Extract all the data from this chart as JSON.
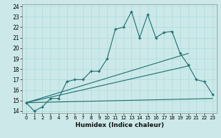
{
  "xlabel": "Humidex (Indice chaleur)",
  "ylabel": "",
  "bg_color": "#cce8e8",
  "line_color": "#1a6b6b",
  "xlim": [
    -0.5,
    23.5
  ],
  "ylim": [
    13.8,
    24.2
  ],
  "xticks": [
    0,
    1,
    2,
    3,
    4,
    5,
    6,
    7,
    8,
    9,
    10,
    11,
    12,
    13,
    14,
    15,
    16,
    17,
    18,
    19,
    20,
    21,
    22,
    23
  ],
  "yticks": [
    14,
    15,
    16,
    17,
    18,
    19,
    20,
    21,
    22,
    23,
    24
  ],
  "main_x": [
    0,
    1,
    2,
    3,
    4,
    5,
    6,
    7,
    8,
    9,
    10,
    11,
    12,
    13,
    14,
    15,
    16,
    17,
    18,
    19,
    20,
    21,
    22,
    23
  ],
  "main_y": [
    14.8,
    14.0,
    14.4,
    15.2,
    15.2,
    16.8,
    17.0,
    17.0,
    17.8,
    17.8,
    19.0,
    21.8,
    22.0,
    23.5,
    21.0,
    23.2,
    21.0,
    21.5,
    21.6,
    19.5,
    18.4,
    17.0,
    16.8,
    15.6
  ],
  "line1_x": [
    0,
    20
  ],
  "line1_y": [
    14.8,
    19.5
  ],
  "line2_x": [
    0,
    20
  ],
  "line2_y": [
    14.8,
    18.3
  ],
  "line3_x": [
    0,
    23
  ],
  "line3_y": [
    14.8,
    15.2
  ]
}
